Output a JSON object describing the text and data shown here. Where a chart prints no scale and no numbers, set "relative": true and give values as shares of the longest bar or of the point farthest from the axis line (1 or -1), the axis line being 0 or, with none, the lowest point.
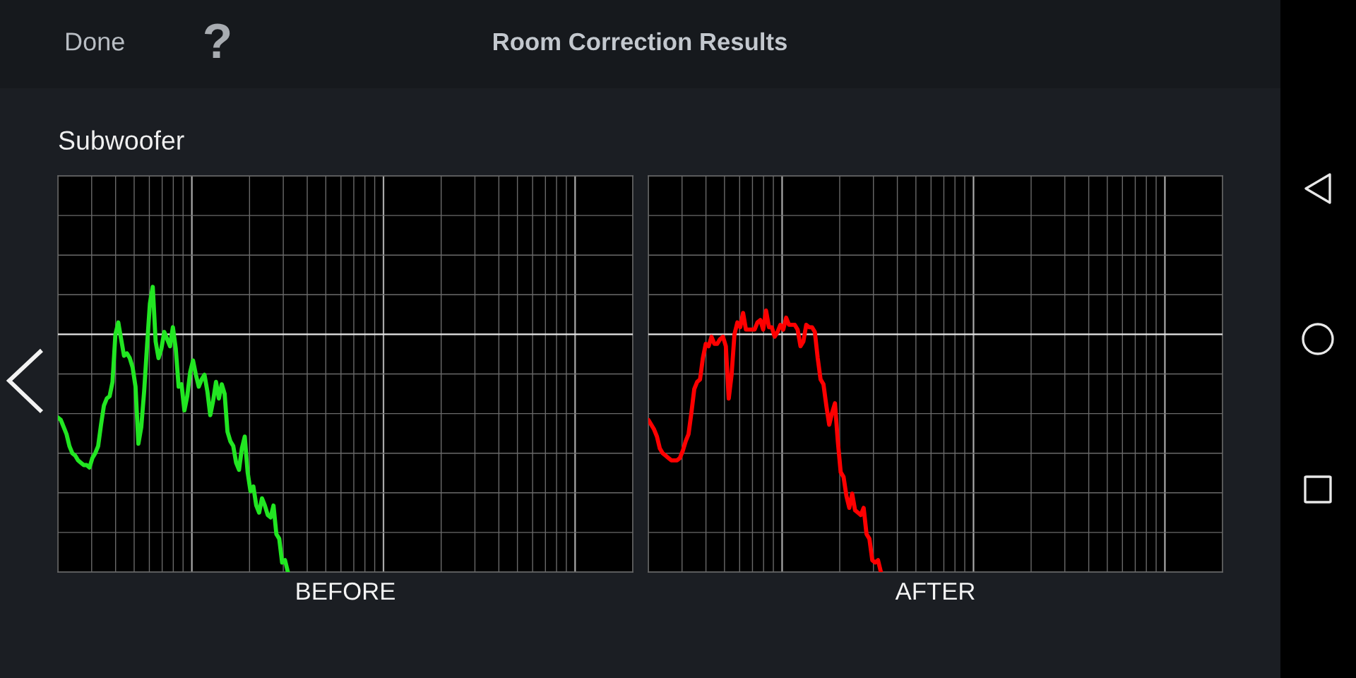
{
  "chart_data": [
    {
      "type": "line",
      "title": "Room Correction Results",
      "subtitle": "Subwoofer",
      "xlabel": "BEFORE",
      "annotations": [
        "Done",
        "?"
      ],
      "categories": [
        null,
        null,
        null,
        null,
        null,
        null,
        null,
        null,
        null,
        null,
        null,
        null,
        null,
        null,
        null,
        null,
        null,
        null,
        null,
        null,
        null,
        null,
        null,
        null,
        null,
        null,
        null,
        null,
        null,
        null,
        null,
        null,
        null,
        null,
        null,
        null,
        null,
        null,
        null,
        null,
        null,
        null,
        null,
        null,
        null,
        null,
        null,
        null,
        null,
        null,
        null,
        null,
        null,
        null,
        null,
        null,
        null,
        null,
        null,
        null,
        null,
        null,
        null,
        null,
        null,
        null,
        null,
        null,
        null,
        null,
        null,
        null,
        null,
        null,
        null,
        null,
        null,
        null,
        null,
        null,
        null,
        null,
        null,
        null,
        null,
        null,
        null,
        null,
        null,
        null,
        null,
        null,
        null,
        null,
        null,
        null,
        null,
        null,
        null,
        null,
        null,
        null,
        null,
        null,
        null,
        null,
        null,
        null,
        null,
        null,
        null,
        null,
        null,
        null,
        null,
        null,
        null,
        null,
        null,
        null,
        null,
        null,
        null,
        null,
        null,
        null,
        null,
        null,
        null,
        null,
        null,
        null,
        null,
        null,
        null,
        null,
        null,
        null,
        null,
        null,
        null,
        null,
        null,
        null,
        null,
        null,
        null,
        null,
        null,
        null,
        null,
        null,
        null,
        null,
        null,
        null,
        null,
        null,
        null,
        null,
        null,
        null,
        null,
        null,
        null,
        null,
        null,
        null,
        null,
        null,
        null,
        null,
        null,
        null,
        null,
        null,
        null,
        null,
        null,
        null,
        null,
        null,
        null,
        null,
        null,
        null,
        null,
        null,
        null,
        null,
        null,
        null,
        null,
        null,
        null,
        null,
        null,
        null,
        null,
        null,
        null
      ],
      "relative": true,
      "grid": true,
      "series": [
        {
          "color": "#22e622",
          "values": [
            -0.35,
            -0.36,
            -0.39,
            -0.42,
            -0.47,
            -0.5,
            -0.51,
            -0.53,
            -0.54,
            -0.55,
            -0.55,
            -0.56,
            -0.52,
            -0.5,
            -0.47,
            -0.38,
            -0.3,
            -0.27,
            -0.26,
            -0.2,
            0.0,
            0.05,
            -0.02,
            -0.09,
            -0.08,
            -0.1,
            -0.14,
            -0.22,
            -0.46,
            -0.39,
            -0.24,
            -0.05,
            0.13,
            0.2,
            -0.03,
            -0.1,
            -0.06,
            0.01,
            -0.02,
            -0.05,
            0.03,
            -0.06,
            -0.22,
            -0.21,
            -0.32,
            -0.26,
            -0.16,
            -0.11,
            -0.17,
            -0.22,
            -0.19,
            -0.17,
            -0.24,
            -0.34,
            -0.28,
            -0.2,
            -0.27,
            -0.21,
            -0.25,
            -0.41,
            -0.45,
            -0.47,
            -0.54,
            -0.57,
            -0.48,
            -0.43,
            -0.58,
            -0.66,
            -0.64,
            -0.72,
            -0.75,
            -0.69,
            -0.72,
            -0.76,
            -0.77,
            -0.72,
            -0.84,
            -0.86,
            -0.96,
            -0.95,
            -1.0,
            null,
            null,
            null,
            null,
            null,
            null,
            null,
            null,
            null,
            null,
            null,
            null,
            null,
            null,
            null,
            null,
            null,
            null,
            null,
            null,
            null,
            null,
            null,
            null,
            null,
            null,
            null,
            null,
            null,
            null,
            null,
            null,
            null,
            null,
            null,
            null,
            null,
            null,
            null,
            null,
            null,
            null,
            null,
            null,
            null,
            null,
            null,
            null,
            null,
            null,
            null,
            null,
            null,
            null,
            null,
            null,
            null,
            null,
            null,
            null,
            null,
            null,
            null,
            null,
            null,
            null,
            null,
            null,
            null,
            null,
            null,
            null,
            null,
            null,
            null,
            null,
            null,
            null,
            null,
            null,
            null,
            null,
            null,
            null,
            null,
            null,
            null,
            null,
            null,
            null,
            null,
            null,
            null,
            null,
            null,
            null,
            null,
            null,
            null,
            null,
            null,
            null,
            null,
            null,
            null,
            null,
            null,
            null,
            null,
            null,
            null,
            null,
            null,
            null,
            null,
            null,
            null,
            null,
            null,
            null
          ]
        }
      ]
    },
    {
      "type": "line",
      "xlabel": "AFTER",
      "categories": [
        null,
        null,
        null,
        null,
        null,
        null,
        null,
        null,
        null,
        null,
        null,
        null,
        null,
        null,
        null,
        null,
        null,
        null,
        null,
        null,
        null,
        null,
        null,
        null,
        null,
        null,
        null,
        null,
        null,
        null,
        null,
        null,
        null,
        null,
        null,
        null,
        null,
        null,
        null,
        null,
        null,
        null,
        null,
        null,
        null,
        null,
        null,
        null,
        null,
        null,
        null,
        null,
        null,
        null,
        null,
        null,
        null,
        null,
        null,
        null,
        null,
        null,
        null,
        null,
        null,
        null,
        null,
        null,
        null,
        null,
        null,
        null,
        null,
        null,
        null,
        null,
        null,
        null,
        null,
        null,
        null,
        null,
        null,
        null,
        null,
        null,
        null,
        null,
        null,
        null,
        null,
        null,
        null,
        null,
        null,
        null,
        null,
        null,
        null,
        null,
        null,
        null,
        null,
        null,
        null,
        null,
        null,
        null,
        null,
        null,
        null,
        null,
        null,
        null,
        null,
        null,
        null,
        null,
        null,
        null,
        null,
        null,
        null,
        null,
        null,
        null,
        null,
        null,
        null,
        null,
        null,
        null,
        null,
        null,
        null,
        null,
        null,
        null,
        null,
        null,
        null,
        null,
        null,
        null,
        null,
        null,
        null,
        null,
        null,
        null,
        null,
        null,
        null,
        null,
        null,
        null,
        null,
        null,
        null,
        null,
        null,
        null,
        null,
        null,
        null,
        null,
        null,
        null,
        null,
        null,
        null,
        null,
        null,
        null,
        null,
        null,
        null,
        null,
        null,
        null,
        null,
        null,
        null,
        null,
        null,
        null,
        null,
        null,
        null,
        null,
        null,
        null,
        null,
        null,
        null,
        null,
        null,
        null,
        null,
        null,
        null
      ],
      "relative": true,
      "grid": true,
      "series": [
        {
          "color": "#ff0000",
          "values": [
            -0.36,
            -0.38,
            -0.4,
            -0.43,
            -0.48,
            -0.5,
            -0.51,
            -0.52,
            -0.53,
            -0.53,
            -0.53,
            -0.52,
            -0.49,
            -0.45,
            -0.42,
            -0.33,
            -0.23,
            -0.2,
            -0.19,
            -0.1,
            -0.04,
            -0.05,
            -0.01,
            -0.04,
            -0.04,
            -0.02,
            -0.01,
            -0.05,
            -0.27,
            -0.17,
            0.0,
            0.05,
            0.03,
            0.09,
            0.02,
            0.02,
            0.02,
            0.02,
            0.05,
            0.06,
            0.02,
            0.1,
            0.03,
            0.03,
            -0.01,
            0.01,
            0.04,
            0.02,
            0.07,
            0.04,
            0.04,
            0.04,
            0.02,
            -0.05,
            -0.03,
            0.04,
            0.03,
            0.03,
            0.01,
            -0.1,
            -0.19,
            -0.21,
            -0.3,
            -0.38,
            -0.33,
            -0.29,
            -0.45,
            -0.58,
            -0.6,
            -0.68,
            -0.73,
            -0.67,
            -0.74,
            -0.75,
            -0.76,
            -0.73,
            -0.84,
            -0.86,
            -0.95,
            -0.96,
            -0.95,
            -1.0,
            null,
            null,
            null,
            null,
            null,
            null,
            null,
            null,
            null,
            null,
            null,
            null,
            null,
            null,
            null,
            null,
            null,
            null,
            null,
            null,
            null,
            null,
            null,
            null,
            null,
            null,
            null,
            null,
            null,
            null,
            null,
            null,
            null,
            null,
            null,
            null,
            null,
            null,
            null,
            null,
            null,
            null,
            null,
            null,
            null,
            null,
            null,
            null,
            null,
            null,
            null,
            null,
            null,
            null,
            null,
            null,
            null,
            null,
            null,
            null,
            null,
            null,
            null,
            null,
            null,
            null,
            null,
            null,
            null,
            null,
            null,
            null,
            null,
            null,
            null,
            null,
            null,
            null,
            null,
            null,
            null,
            null,
            null,
            null,
            null,
            null,
            null,
            null,
            null,
            null,
            null,
            null,
            null,
            null,
            null,
            null,
            null,
            null,
            null,
            null,
            null,
            null,
            null,
            null,
            null,
            null,
            null,
            null,
            null,
            null,
            null,
            null,
            null,
            null,
            null,
            null,
            null,
            null,
            null
          ]
        }
      ]
    }
  ]
}
